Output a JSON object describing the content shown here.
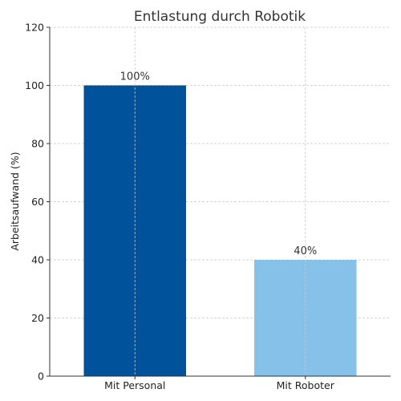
{
  "chart_data": {
    "type": "bar",
    "title": "Entlastung durch Robotik",
    "xlabel": "",
    "ylabel": "Arbeitsaufwand (%)",
    "categories": [
      "Mit Personal",
      "Mit Roboter"
    ],
    "values": [
      100,
      40
    ],
    "data_labels": [
      "100%",
      "40%"
    ],
    "colors": [
      "#00529b",
      "#85c1e9"
    ],
    "ylim": [
      0,
      120
    ],
    "yticks": [
      0,
      20,
      40,
      60,
      80,
      100,
      120
    ],
    "grid": true
  }
}
